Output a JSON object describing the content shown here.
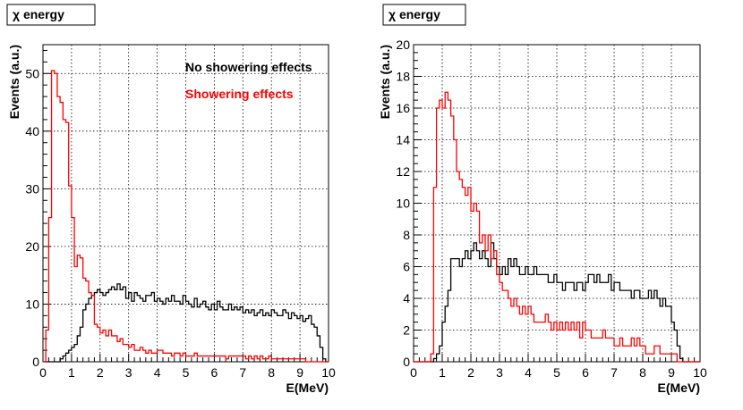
{
  "chart_data": [
    {
      "type": "line",
      "title": "χ energy",
      "xlabel": "E(MeV)",
      "ylabel": "Events (a.u.)",
      "xlim": [
        0,
        10
      ],
      "ylim": [
        0,
        55
      ],
      "xticks": [
        "0",
        "1",
        "2",
        "3",
        "4",
        "5",
        "6",
        "7",
        "8",
        "9",
        "10"
      ],
      "yticks": [
        {
          "v": 0,
          "t": "0"
        },
        {
          "v": 10,
          "t": "10"
        },
        {
          "v": 20,
          "t": "20"
        },
        {
          "v": 30,
          "t": "30"
        },
        {
          "v": 40,
          "t": "40"
        },
        {
          "v": 50,
          "t": "50"
        }
      ],
      "grid": true,
      "legend_position": "top-right",
      "bin_width": 0.1,
      "series": [
        {
          "name": "No showering effects",
          "color": "#000000",
          "values": [
            0,
            0,
            0,
            0,
            0,
            0,
            0.5,
            1,
            1.5,
            2,
            2.5,
            3,
            4.5,
            6,
            9,
            10,
            11,
            11.5,
            12,
            12.5,
            12,
            11.5,
            12,
            12.5,
            13,
            12.5,
            13.5,
            12.5,
            13,
            11,
            12,
            10.5,
            12,
            11.5,
            11,
            10.5,
            11.5,
            11.5,
            12,
            10.5,
            11,
            10.5,
            10,
            11,
            10.5,
            11.5,
            10.5,
            10.5,
            10,
            11.5,
            10.5,
            10,
            9.5,
            11,
            9.5,
            10,
            10.5,
            9.5,
            9,
            10,
            9,
            10.5,
            9.5,
            9,
            9,
            10,
            9,
            9.5,
            9,
            9.5,
            8.5,
            9,
            8.5,
            9,
            8,
            8.5,
            9,
            8,
            8.5,
            8,
            9,
            8.5,
            8,
            8,
            9,
            8.5,
            7.5,
            8.5,
            8,
            7.5,
            8,
            7,
            7.5,
            8,
            6.5,
            6,
            4.5,
            2.5,
            0.5,
            0
          ]
        },
        {
          "name": "Showering effects",
          "color": "#ff0000",
          "values": [
            0,
            5.5,
            25,
            50.5,
            50,
            46,
            45,
            42,
            41.5,
            30.5,
            25,
            16.5,
            18.5,
            18,
            14.5,
            14,
            12,
            11.5,
            6.5,
            6,
            5,
            5.5,
            4.5,
            5.5,
            4.5,
            4.5,
            3.5,
            4,
            3,
            3,
            2.5,
            3,
            2,
            2,
            2.5,
            2,
            1.5,
            2,
            1.5,
            1.5,
            2,
            2,
            1.5,
            1.5,
            1.5,
            1,
            1.5,
            1.5,
            1,
            1.5,
            1,
            1,
            1,
            1.5,
            1,
            1,
            1,
            1,
            1,
            1,
            1,
            1,
            1,
            1,
            0.5,
            1,
            1,
            1,
            1,
            1,
            1,
            0.5,
            1,
            0.5,
            1,
            0.5,
            1,
            0.5,
            0.5,
            1,
            0.5,
            0.5,
            0.5,
            0.5,
            0.5,
            0.5,
            0.5,
            0.5,
            0.5,
            0.5,
            0.5,
            0.5,
            0,
            0,
            0,
            0,
            0,
            0,
            0,
            0
          ]
        }
      ]
    },
    {
      "type": "line",
      "title": "χ energy",
      "xlabel": "E(MeV)",
      "ylabel": "Events (a.u.)",
      "xlim": [
        0,
        10
      ],
      "ylim": [
        0,
        20
      ],
      "xticks": [
        "0",
        "1",
        "2",
        "3",
        "4",
        "5",
        "6",
        "7",
        "8",
        "9",
        "10"
      ],
      "yticks": [
        {
          "v": 0,
          "t": "0"
        },
        {
          "v": 2,
          "t": "2"
        },
        {
          "v": 4,
          "t": "4"
        },
        {
          "v": 6,
          "t": "6"
        },
        {
          "v": 8,
          "t": "8"
        },
        {
          "v": 10,
          "t": "10"
        },
        {
          "v": 12,
          "t": "12"
        },
        {
          "v": 14,
          "t": "14"
        },
        {
          "v": 16,
          "t": "16"
        },
        {
          "v": 18,
          "t": "18"
        },
        {
          "v": 20,
          "t": "20"
        }
      ],
      "grid": true,
      "legend_position": "none",
      "bin_width": 0.1,
      "series": [
        {
          "color": "#000000",
          "values": [
            0,
            0,
            0,
            0,
            0,
            0,
            0,
            0.2,
            0.5,
            1,
            2.5,
            3.5,
            4.5,
            6.5,
            6.5,
            6.5,
            6,
            6.5,
            7,
            6.5,
            7,
            7.5,
            7,
            6.5,
            7,
            6.5,
            6,
            7.5,
            6.5,
            6,
            5.5,
            6,
            5.5,
            6.5,
            6,
            6.5,
            6,
            5.5,
            5.5,
            6,
            5.5,
            5.5,
            6,
            5.5,
            5.5,
            5.5,
            5.5,
            5,
            5,
            5.5,
            5,
            5,
            4.5,
            5,
            5,
            5,
            4.5,
            5,
            5,
            4.5,
            5,
            5.5,
            5.5,
            5,
            5.5,
            5,
            5,
            5,
            5.5,
            4.5,
            5,
            5,
            4.5,
            4.5,
            4.5,
            4.5,
            4,
            4.5,
            4.5,
            4,
            4,
            4,
            4.5,
            4,
            4.5,
            4,
            3.5,
            4,
            3.5,
            3.5,
            2.5,
            2,
            1,
            0.2,
            0,
            0,
            0,
            0,
            0,
            0
          ]
        },
        {
          "color": "#ff0000",
          "values": [
            0,
            0,
            0,
            0,
            0,
            0,
            0.5,
            11,
            16,
            16.5,
            16,
            17,
            16.5,
            15.5,
            14,
            12,
            11.5,
            11,
            10.5,
            11,
            9.5,
            10,
            9.5,
            7.5,
            8,
            7,
            8,
            6.5,
            7,
            5.5,
            5,
            4.5,
            4.5,
            4,
            3.5,
            4,
            3.5,
            3,
            3.5,
            3,
            3.5,
            3,
            2.5,
            2.5,
            2.5,
            2.5,
            3,
            2.5,
            2,
            2.5,
            2,
            2.5,
            2,
            2.5,
            2,
            2.5,
            2,
            2.5,
            1.5,
            2.5,
            2,
            2,
            1.5,
            1.5,
            1.5,
            1.5,
            2,
            1.5,
            1.5,
            1.5,
            1,
            1,
            1.5,
            1,
            1,
            1,
            1.5,
            1,
            1.5,
            1,
            1,
            0.5,
            0.5,
            0.5,
            1,
            1,
            0.5,
            0.5,
            0.5,
            0.5,
            0.5,
            0.5,
            0,
            0,
            0,
            0,
            0,
            0,
            0,
            0
          ]
        }
      ]
    }
  ]
}
